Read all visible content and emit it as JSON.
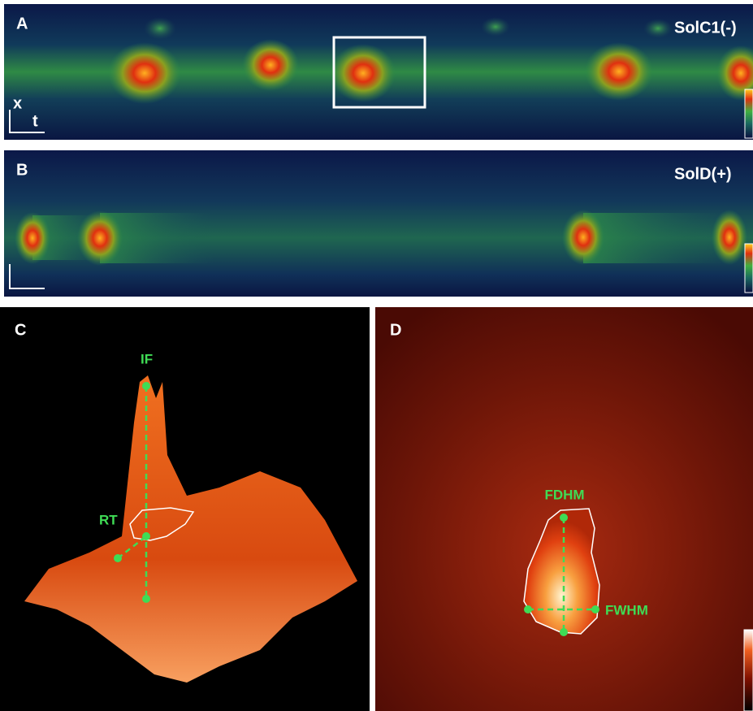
{
  "panels": {
    "a": {
      "label": "A",
      "condition": "SolC1(-)",
      "axis_x": "x",
      "axis_t": "t"
    },
    "b": {
      "label": "B",
      "condition": "SolD(+)"
    },
    "c": {
      "label": "C",
      "peak": "IF",
      "rise": "RT"
    },
    "d": {
      "label": "D",
      "duration": "FDHM",
      "width": "FWHM"
    }
  }
}
